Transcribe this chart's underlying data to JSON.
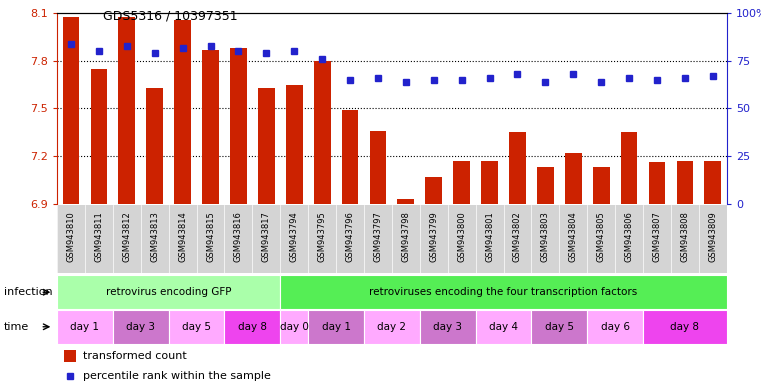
{
  "title": "GDS5316 / 10397351",
  "samples": [
    "GSM943810",
    "GSM943811",
    "GSM943812",
    "GSM943813",
    "GSM943814",
    "GSM943815",
    "GSM943816",
    "GSM943817",
    "GSM943794",
    "GSM943795",
    "GSM943796",
    "GSM943797",
    "GSM943798",
    "GSM943799",
    "GSM943800",
    "GSM943801",
    "GSM943802",
    "GSM943803",
    "GSM943804",
    "GSM943805",
    "GSM943806",
    "GSM943807",
    "GSM943808",
    "GSM943809"
  ],
  "bar_values": [
    8.08,
    7.75,
    8.08,
    7.63,
    8.06,
    7.87,
    7.88,
    7.63,
    7.65,
    7.8,
    7.49,
    7.36,
    6.93,
    7.07,
    7.17,
    7.17,
    7.35,
    7.13,
    7.22,
    7.13,
    7.35,
    7.16,
    7.17,
    7.17
  ],
  "percentile_values": [
    84,
    80,
    83,
    79,
    82,
    83,
    80,
    79,
    80,
    76,
    65,
    66,
    64,
    65,
    65,
    66,
    68,
    64,
    68,
    64,
    66,
    65,
    66,
    67
  ],
  "y_min": 6.9,
  "y_max": 8.1,
  "y_ticks": [
    6.9,
    7.2,
    7.5,
    7.8,
    8.1
  ],
  "y2_ticks": [
    0,
    25,
    50,
    75,
    100
  ],
  "bar_color": "#cc2200",
  "dot_color": "#2222cc",
  "infection_groups": [
    {
      "label": "retrovirus encoding GFP",
      "start": 0,
      "end": 8,
      "color": "#aaffaa"
    },
    {
      "label": "retroviruses encoding the four transcription factors",
      "start": 8,
      "end": 24,
      "color": "#55ee55"
    }
  ],
  "time_groups": [
    {
      "label": "day 1",
      "start": 0,
      "end": 2,
      "color": "#ffaaff"
    },
    {
      "label": "day 3",
      "start": 2,
      "end": 4,
      "color": "#cc77cc"
    },
    {
      "label": "day 5",
      "start": 4,
      "end": 6,
      "color": "#ffaaff"
    },
    {
      "label": "day 8",
      "start": 6,
      "end": 8,
      "color": "#ee44ee"
    },
    {
      "label": "day 0",
      "start": 8,
      "end": 9,
      "color": "#ffaaff"
    },
    {
      "label": "day 1",
      "start": 9,
      "end": 11,
      "color": "#cc77cc"
    },
    {
      "label": "day 2",
      "start": 11,
      "end": 13,
      "color": "#ffaaff"
    },
    {
      "label": "day 3",
      "start": 13,
      "end": 15,
      "color": "#cc77cc"
    },
    {
      "label": "day 4",
      "start": 15,
      "end": 17,
      "color": "#ffaaff"
    },
    {
      "label": "day 5",
      "start": 17,
      "end": 19,
      "color": "#cc77cc"
    },
    {
      "label": "day 6",
      "start": 19,
      "end": 21,
      "color": "#ffaaff"
    },
    {
      "label": "day 8",
      "start": 21,
      "end": 24,
      "color": "#ee44ee"
    }
  ],
  "legend_bar_label": "transformed count",
  "legend_dot_label": "percentile rank within the sample",
  "infection_label": "infection",
  "time_label": "time",
  "background_color": "#ffffff",
  "tick_color_left": "#cc2200",
  "tick_color_right": "#2222cc",
  "xlabel_bg": "#cccccc"
}
